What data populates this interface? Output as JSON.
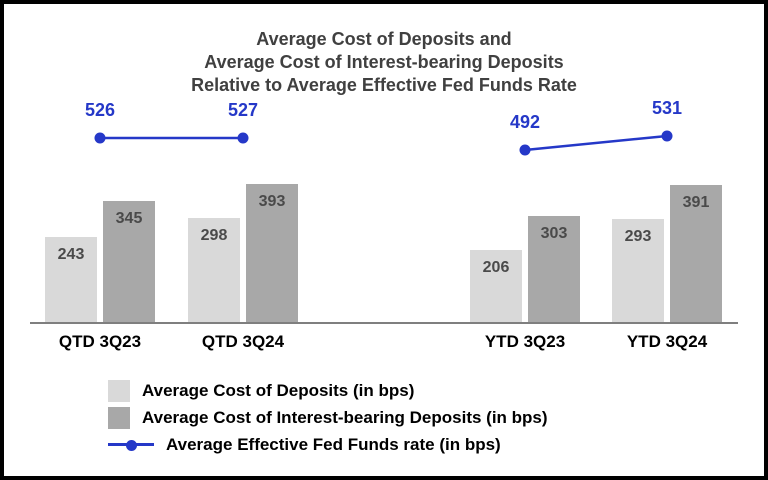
{
  "chart_data": {
    "type": "bar",
    "title": "Average Cost of Deposits and\nAverage Cost of Interest-bearing Deposits\nRelative to Average Effective Fed Funds Rate",
    "categories": [
      "QTD 3Q23",
      "QTD 3Q24",
      "YTD 3Q23",
      "YTD 3Q24"
    ],
    "series": [
      {
        "name": "Average Cost of Deposits (in bps)",
        "series_type": "bar",
        "color": "#d9d9d9",
        "values": [
          243,
          298,
          206,
          293
        ]
      },
      {
        "name": "Average Cost of Interest-bearing Deposits (in bps)",
        "series_type": "bar",
        "color": "#a8a8a8",
        "values": [
          345,
          393,
          303,
          391
        ]
      },
      {
        "name": "Average Effective Fed Funds rate (in bps)",
        "series_type": "line",
        "color": "#2538c8",
        "values": [
          526,
          527,
          492,
          531
        ],
        "segments": [
          [
            0,
            1
          ],
          [
            2,
            3
          ]
        ]
      }
    ],
    "ylim": [
      0,
      560
    ],
    "grid": false,
    "legend_position": "bottom",
    "value_labels": true,
    "styles": {
      "title_color": "#404040",
      "bar_value_color": "#4a4a4a",
      "axis_color": "#7f7f7f",
      "category_label_color": "#000000",
      "border_color": "#000000",
      "background_color": "#ffffff"
    }
  }
}
